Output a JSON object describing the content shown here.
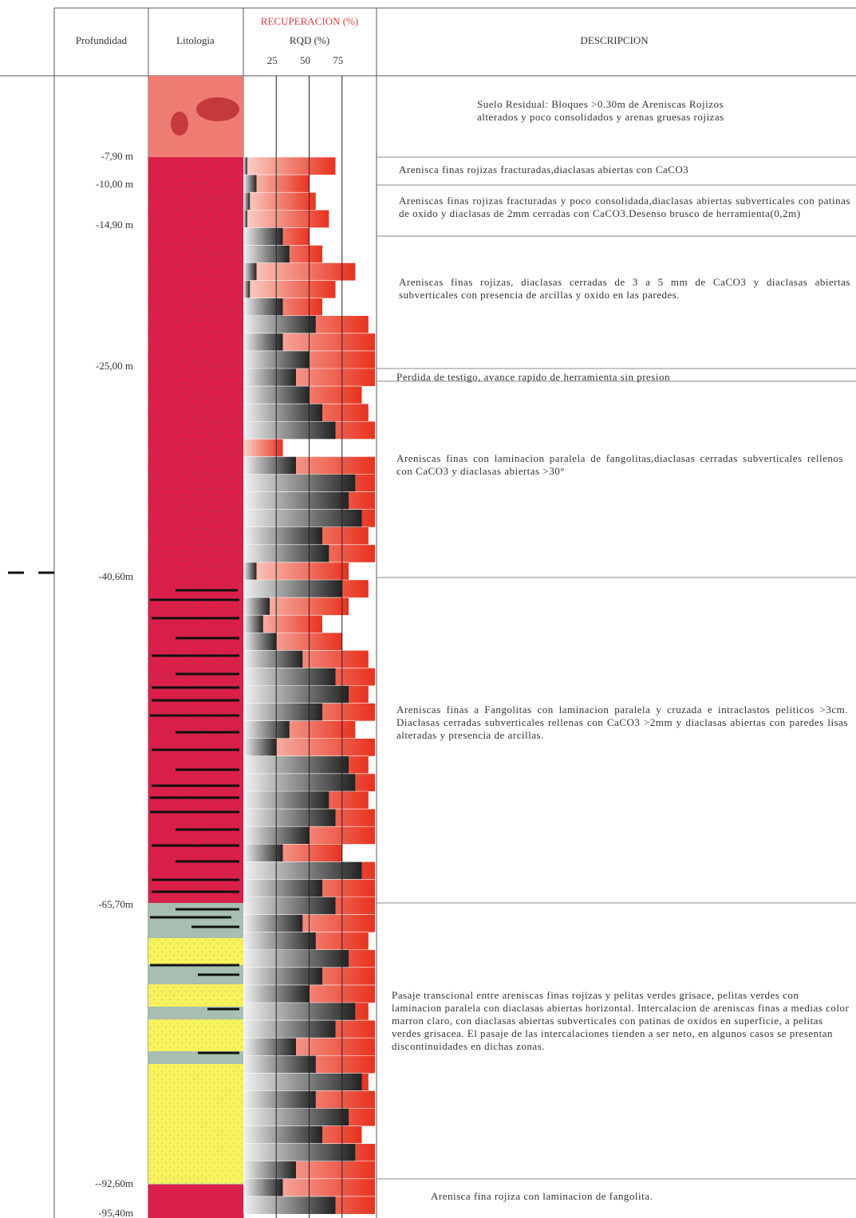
{
  "header": {
    "depth": "Profundidad",
    "lithology": "Litologia",
    "recovery": "RECUPERACION (%)",
    "rqd": "RQD (%)",
    "description": "DESCRIPCION"
  },
  "scale": {
    "xlim": [
      0,
      100
    ],
    "xticks": [
      25,
      50,
      75
    ]
  },
  "depth_labels": [
    "-7,90 m",
    "-10,00 m",
    "-14,90 m",
    "-25,00 m",
    "-40,60m",
    "-65,70m",
    "--92,60m",
    "-95,40m"
  ],
  "runs": {
    "recovery": [
      70,
      50,
      55,
      65,
      50,
      60,
      85,
      70,
      60,
      95,
      100,
      100,
      100,
      90,
      95,
      100,
      30,
      100,
      100,
      100,
      100,
      95,
      100,
      80,
      95,
      80,
      60,
      75,
      95,
      100,
      95,
      100,
      85,
      100,
      95,
      100,
      95,
      100,
      100,
      75,
      100,
      100,
      100,
      100,
      95,
      100,
      100,
      100,
      95,
      100,
      100,
      100,
      95,
      100,
      100,
      90,
      100,
      100,
      100,
      100
    ],
    "rqd": [
      3,
      10,
      5,
      3,
      30,
      35,
      10,
      5,
      30,
      55,
      30,
      50,
      40,
      50,
      60,
      70,
      0,
      40,
      85,
      80,
      90,
      60,
      65,
      10,
      75,
      20,
      15,
      25,
      45,
      70,
      80,
      60,
      35,
      25,
      80,
      85,
      65,
      70,
      50,
      30,
      90,
      60,
      70,
      45,
      55,
      80,
      60,
      50,
      85,
      70,
      40,
      55,
      90,
      55,
      80,
      60,
      85,
      40,
      30,
      70
    ]
  },
  "descriptions": [
    "Suelo Residual: Bloques >0.30m de Areniscas Rojizos alterados y poco consolidados y arenas gruesas rojizas",
    "Arenisca finas rojizas fracturadas,diaclasas abiertas con CaCO3",
    "Areniscas finas rojizas fracturadas y poco consolidada,diaclasas abiertas subverticales con patinas de oxido y diaclasas de 2mm cerradas con CaCO3.Desenso brusco de herramienta(0,2m)",
    "Areniscas finas rojizas, diaclasas cerradas de 3 a 5 mm de CaCO3 y diaclasas abiertas subverticales con presencia de arcillas y oxido en las paredes.",
    "Perdida de testigo, avance rapido de herramienta sin presion",
    "Areniscas finas con laminacion paralela de fangolitas,diaclasas cerradas subverticales rellenos con CaCO3 y diaclasas abiertas >30°",
    "Areniscas finas a Fangolitas con laminacion paralela y cruzada e intraclastos peliticos >3cm. Diaclasas cerradas subverticales rellenas con CaCO3 >2mm y diaclasas abiertas con paredes lisas alteradas y presencia de arcillas.",
    "Pasaje transcional entre areniscas finas rojizas y pelitas verdes grisace, pelitas verdes con laminacion paralela con diaclasas abiertas horizontal. Intercalacion de areniscas finas a medias color marron claro, con diaclasas abiertas subverticales con patinas de oxidos en superficie, a pelitas verdes grisacea. El pasaje de las intercalaciones tienden a ser neto, en algunos casos se presentan discontinuidades en dichas zonas.",
    "Arenisca fina rojiza con laminacion de fangolita."
  ]
}
